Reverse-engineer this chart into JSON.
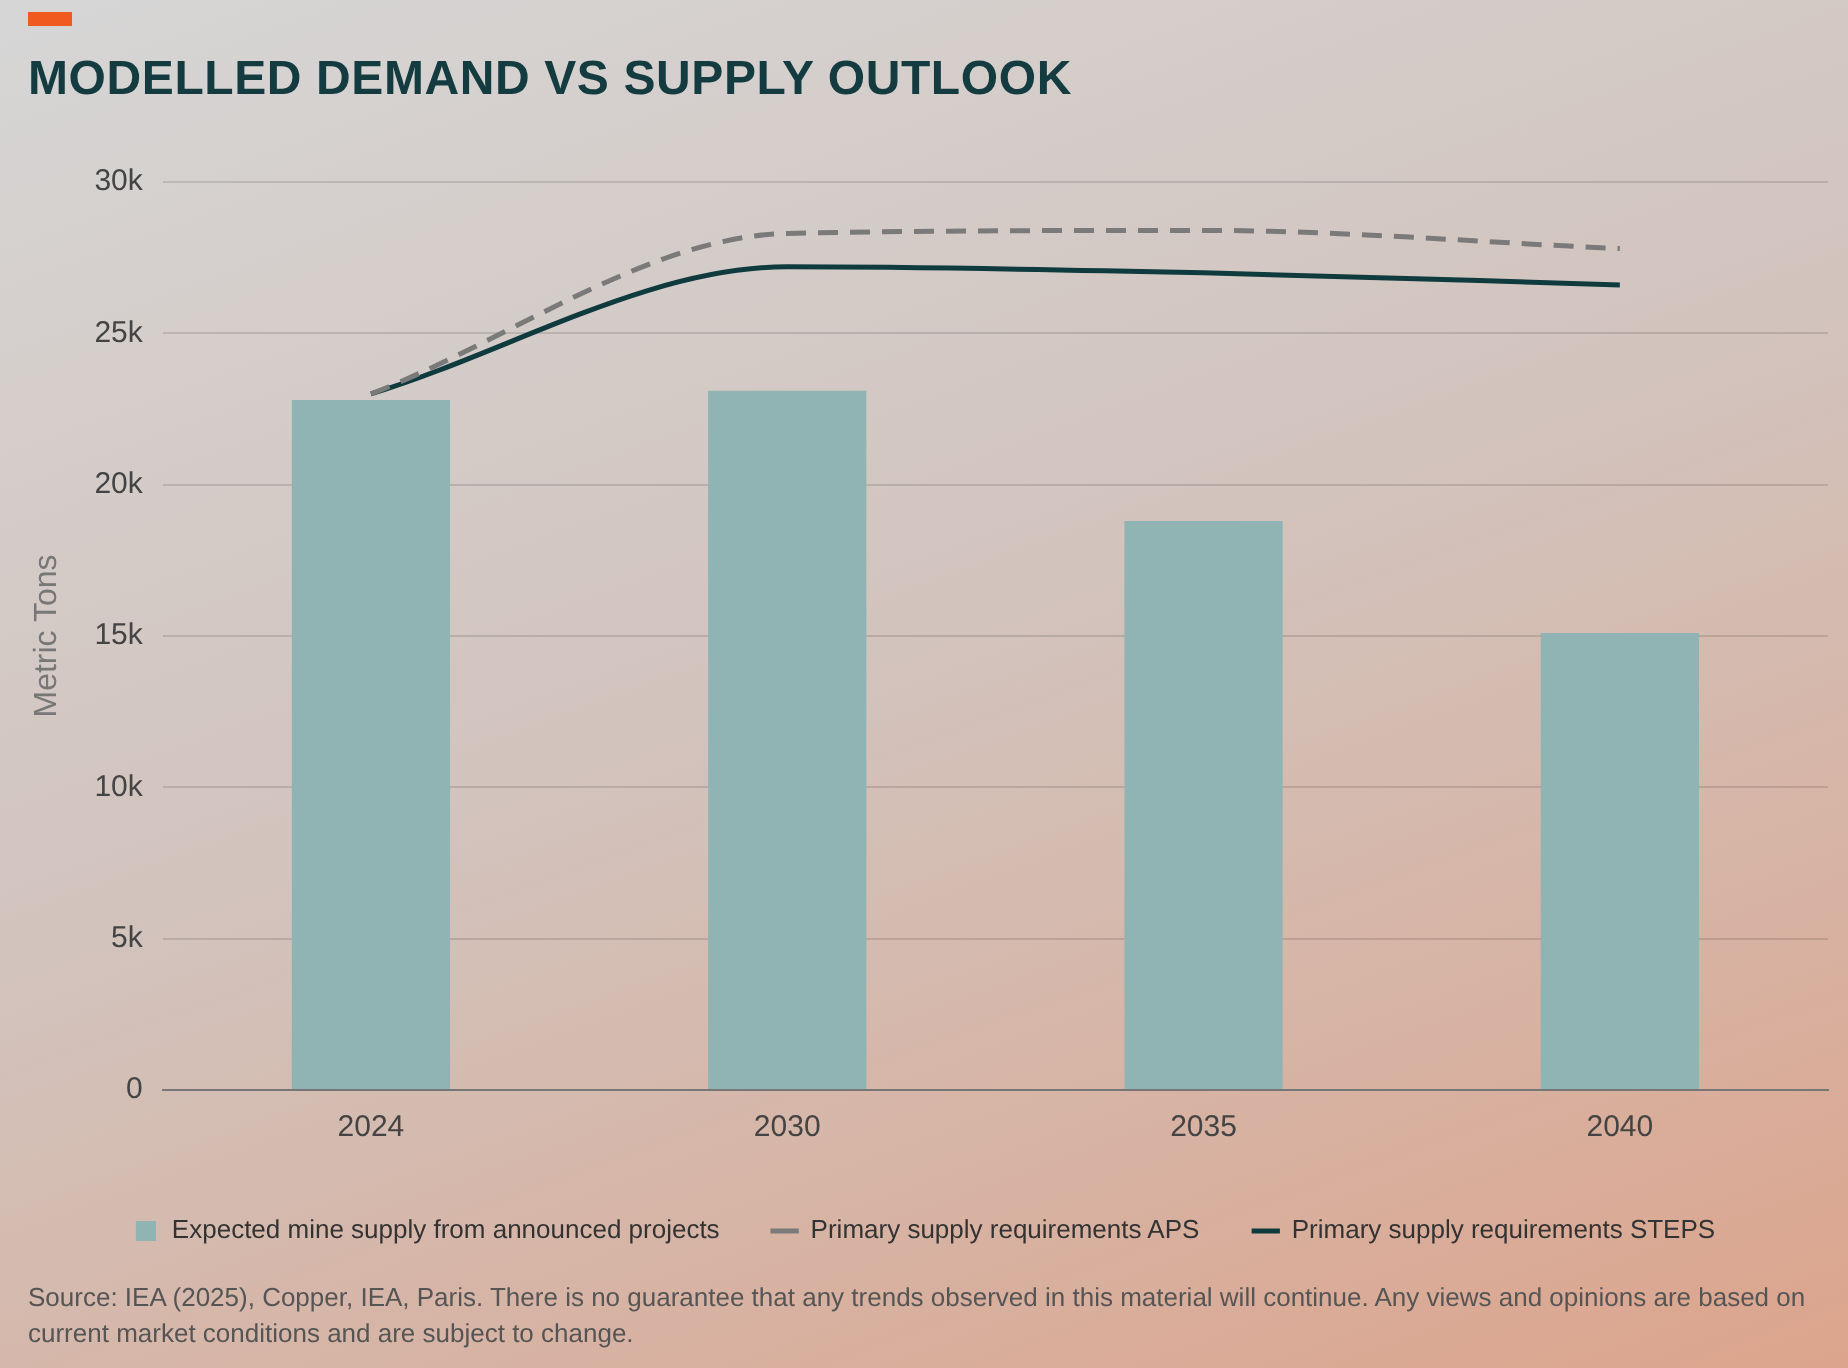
{
  "chart_data": {
    "type": "bar",
    "title": "MODELLED DEMAND VS SUPPLY OUTLOOK",
    "ylabel": "Metric Tons",
    "categories": [
      "2024",
      "2030",
      "2035",
      "2040"
    ],
    "ylim": [
      0,
      30000
    ],
    "yticks": [
      {
        "value": 0,
        "label": "0"
      },
      {
        "value": 5000,
        "label": "5k"
      },
      {
        "value": 10000,
        "label": "10k"
      },
      {
        "value": 15000,
        "label": "15k"
      },
      {
        "value": 20000,
        "label": "20k"
      },
      {
        "value": 25000,
        "label": "25k"
      },
      {
        "value": 30000,
        "label": "30k"
      }
    ],
    "grid": "y",
    "legend": "bottom",
    "marker": "none",
    "series": [
      {
        "name": "Expected mine supply from announced projects",
        "color": "#90b4b4",
        "values": [
          22800,
          23100,
          18800,
          15100
        ]
      },
      {
        "name": "Primary supply requirements APS",
        "type": "line",
        "line_style": "dashed",
        "color": "#7a7a7a",
        "values": [
          23000,
          28300,
          28400,
          27800
        ]
      },
      {
        "name": "Primary supply requirements STEPS",
        "type": "line",
        "line_style": "solid",
        "color": "#0f3a3e",
        "values": [
          23000,
          27200,
          27000,
          26600
        ]
      }
    ],
    "annotations": [
      "Source: IEA (2025), Copper, IEA, Paris. There is no guarantee that any trends observed in this material will continue. Any views and opinions are based on current market conditions and are subject to change."
    ]
  }
}
